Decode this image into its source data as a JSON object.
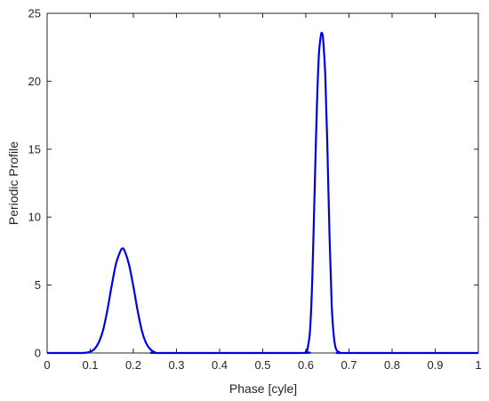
{
  "chart_data": {
    "type": "line",
    "title": "",
    "xlabel": "Phase [cyle]",
    "ylabel": "Periodic Profile",
    "xlim": [
      0,
      1
    ],
    "ylim": [
      0,
      25
    ],
    "xticks": [
      0,
      0.1,
      0.2,
      0.3,
      0.4,
      0.5,
      0.6,
      0.7,
      0.8,
      0.9,
      1
    ],
    "xtick_labels": [
      "0",
      "0.1",
      "0.2",
      "0.3",
      "0.4",
      "0.5",
      "0.6",
      "0.7",
      "0.8",
      "0.9",
      "1"
    ],
    "yticks": [
      0,
      5,
      10,
      15,
      20,
      25
    ],
    "ytick_labels": [
      "0",
      "5",
      "10",
      "15",
      "20",
      "25"
    ],
    "grid": false,
    "series": [
      {
        "color": "#0000e6",
        "x": [
          0,
          0.08,
          0.1,
          0.11,
          0.12,
          0.13,
          0.14,
          0.15,
          0.16,
          0.17,
          0.175,
          0.18,
          0.19,
          0.2,
          0.21,
          0.22,
          0.23,
          0.24,
          0.25,
          0.27,
          0.58,
          0.6,
          0.605,
          0.61,
          0.615,
          0.62,
          0.625,
          0.63,
          0.635,
          0.638,
          0.64,
          0.645,
          0.65,
          0.655,
          0.66,
          0.665,
          0.67,
          0.68,
          0.7,
          1
        ],
        "y": [
          0,
          0,
          0.1,
          0.3,
          0.8,
          1.7,
          3.2,
          5,
          6.6,
          7.5,
          7.7,
          7.5,
          6.5,
          4.9,
          3.1,
          1.6,
          0.7,
          0.25,
          0.05,
          0,
          0,
          0.1,
          0.5,
          1.8,
          5.5,
          11.5,
          17.5,
          21.8,
          23.4,
          23.5,
          23.1,
          20.5,
          15,
          8.5,
          3.5,
          1.2,
          0.3,
          0.02,
          0,
          0
        ]
      }
    ]
  }
}
